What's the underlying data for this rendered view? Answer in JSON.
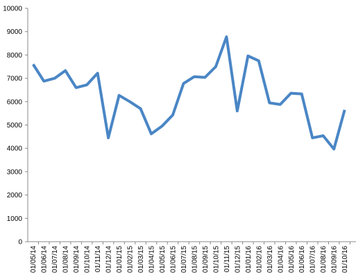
{
  "chart_data": {
    "type": "line",
    "categories": [
      "01/05/14",
      "01/06/14",
      "01/07/14",
      "01/08/14",
      "01/09/14",
      "01/10/14",
      "01/11/14",
      "01/12/14",
      "01/01/15",
      "01/02/15",
      "01/03/15",
      "01/04/15",
      "01/05/15",
      "01/06/15",
      "01/07/15",
      "01/08/15",
      "01/09/15",
      "01/10/15",
      "01/11/15",
      "01/12/15",
      "01/01/16",
      "01/02/16",
      "01/03/16",
      "01/04/16",
      "01/05/16",
      "01/06/16",
      "01/07/16",
      "01/08/16",
      "01/09/16",
      "01/10/16"
    ],
    "values": [
      7600,
      6880,
      7000,
      7330,
      6600,
      6720,
      7220,
      4450,
      6270,
      6000,
      5700,
      4620,
      4950,
      5430,
      6780,
      7070,
      7040,
      7500,
      8780,
      5600,
      7960,
      7750,
      5950,
      5880,
      6360,
      6330,
      4450,
      4540,
      3970,
      5650
    ],
    "color": "#4a86c5",
    "ylim": [
      0,
      10000
    ],
    "yticks": [
      0,
      1000,
      2000,
      3000,
      4000,
      5000,
      6000,
      7000,
      8000,
      9000,
      10000
    ],
    "grid": false
  }
}
